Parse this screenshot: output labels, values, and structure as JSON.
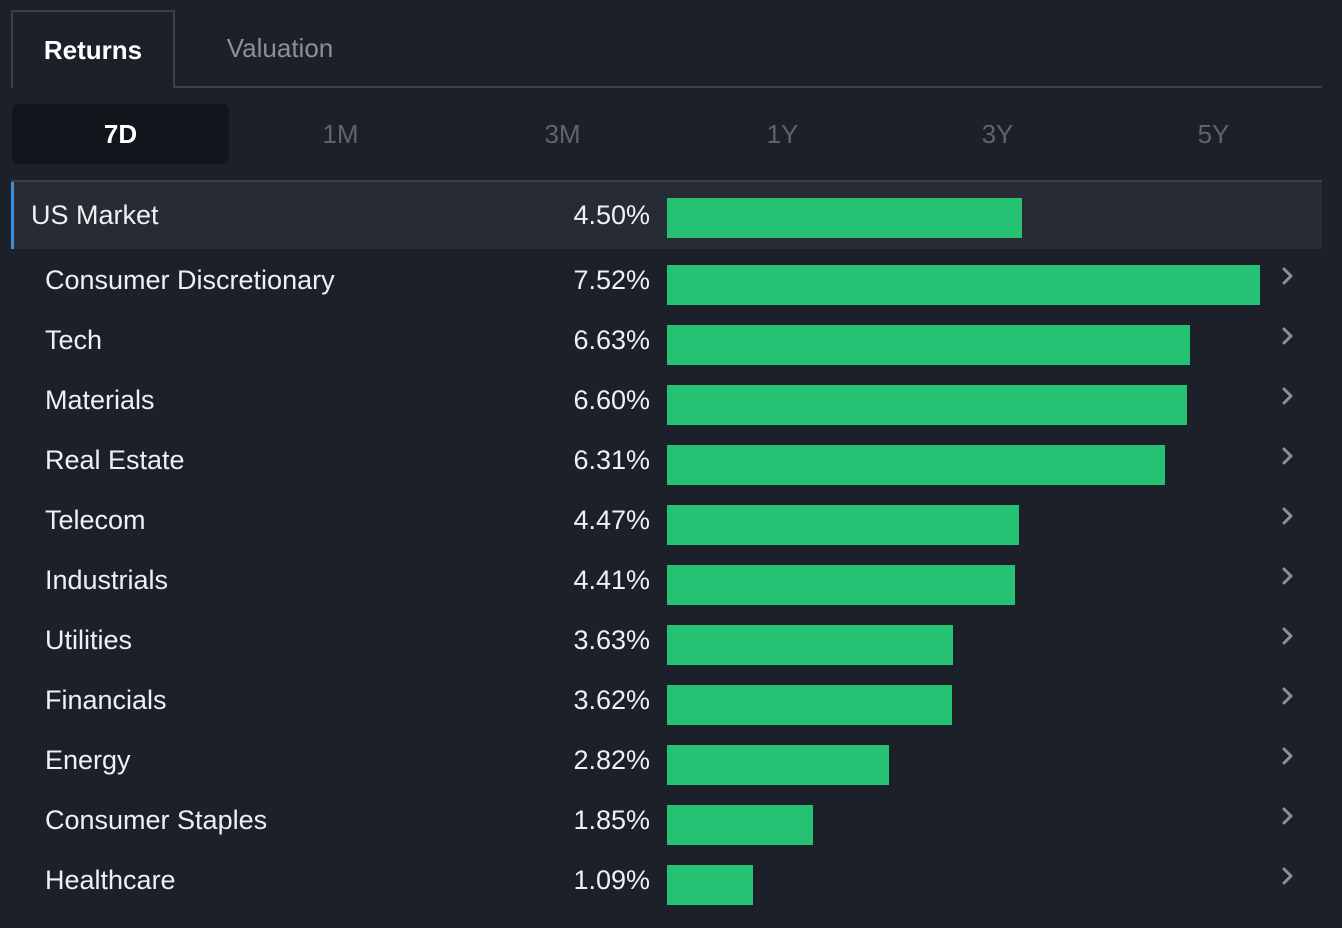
{
  "tabs": {
    "returns": "Returns",
    "valuation": "Valuation"
  },
  "periods": [
    "7D",
    "1M",
    "3M",
    "1Y",
    "3Y",
    "5Y"
  ],
  "active_period": "7D",
  "colors": {
    "bar": "#25c274",
    "accent": "#3a8fdb",
    "background": "#1c2029"
  },
  "chart_data": {
    "type": "bar",
    "orientation": "horizontal",
    "scale_max": 7.52,
    "market": {
      "name": "US Market",
      "value": 4.5,
      "label": "4.50%"
    },
    "sectors": [
      {
        "name": "Consumer Discretionary",
        "value": 7.52,
        "label": "7.52%"
      },
      {
        "name": "Tech",
        "value": 6.63,
        "label": "6.63%"
      },
      {
        "name": "Materials",
        "value": 6.6,
        "label": "6.60%"
      },
      {
        "name": "Real Estate",
        "value": 6.31,
        "label": "6.31%"
      },
      {
        "name": "Telecom",
        "value": 4.47,
        "label": "4.47%"
      },
      {
        "name": "Industrials",
        "value": 4.41,
        "label": "4.41%"
      },
      {
        "name": "Utilities",
        "value": 3.63,
        "label": "3.63%"
      },
      {
        "name": "Financials",
        "value": 3.62,
        "label": "3.62%"
      },
      {
        "name": "Energy",
        "value": 2.82,
        "label": "2.82%"
      },
      {
        "name": "Consumer Staples",
        "value": 1.85,
        "label": "1.85%"
      },
      {
        "name": "Healthcare",
        "value": 1.09,
        "label": "1.09%"
      }
    ]
  },
  "row_icon": "chevron-right-icon"
}
